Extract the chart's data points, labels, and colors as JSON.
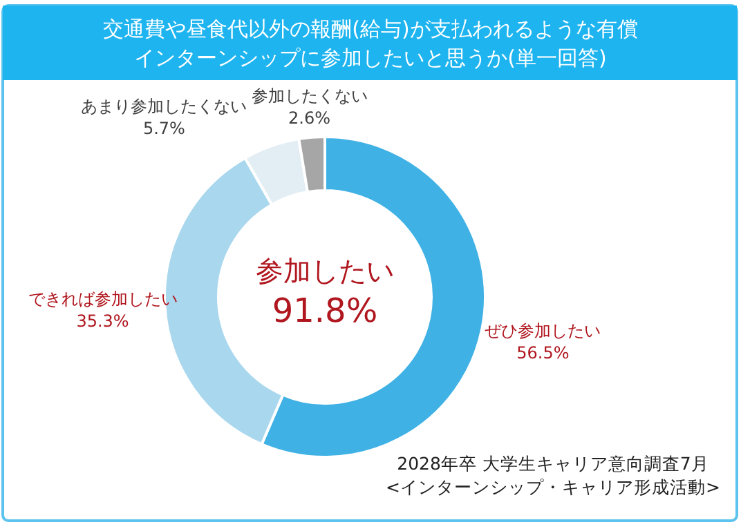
{
  "chart_data": {
    "type": "donut",
    "title": "交通費や昼食代以外の報酬(給与)が支払われるような有償インターンシップに参加したいと思うか(単一回答)",
    "categories": [
      "ぜひ参加したい",
      "できれば参加したい",
      "あまり参加したくない",
      "参加したくない"
    ],
    "values": [
      56.5,
      35.3,
      5.7,
      2.6
    ],
    "colors": [
      "#3fb1e5",
      "#a9d7ee",
      "#e3eef4",
      "#a6a6a6"
    ],
    "value_labels": [
      "56.5%",
      "35.3%",
      "5.7%",
      "2.6%"
    ],
    "annotations": [
      "参加したい\n91.8%",
      "2028年卒 大学生キャリア意向調査7月\n<インターンシップ・キャリア形成活動>"
    ]
  }
}
